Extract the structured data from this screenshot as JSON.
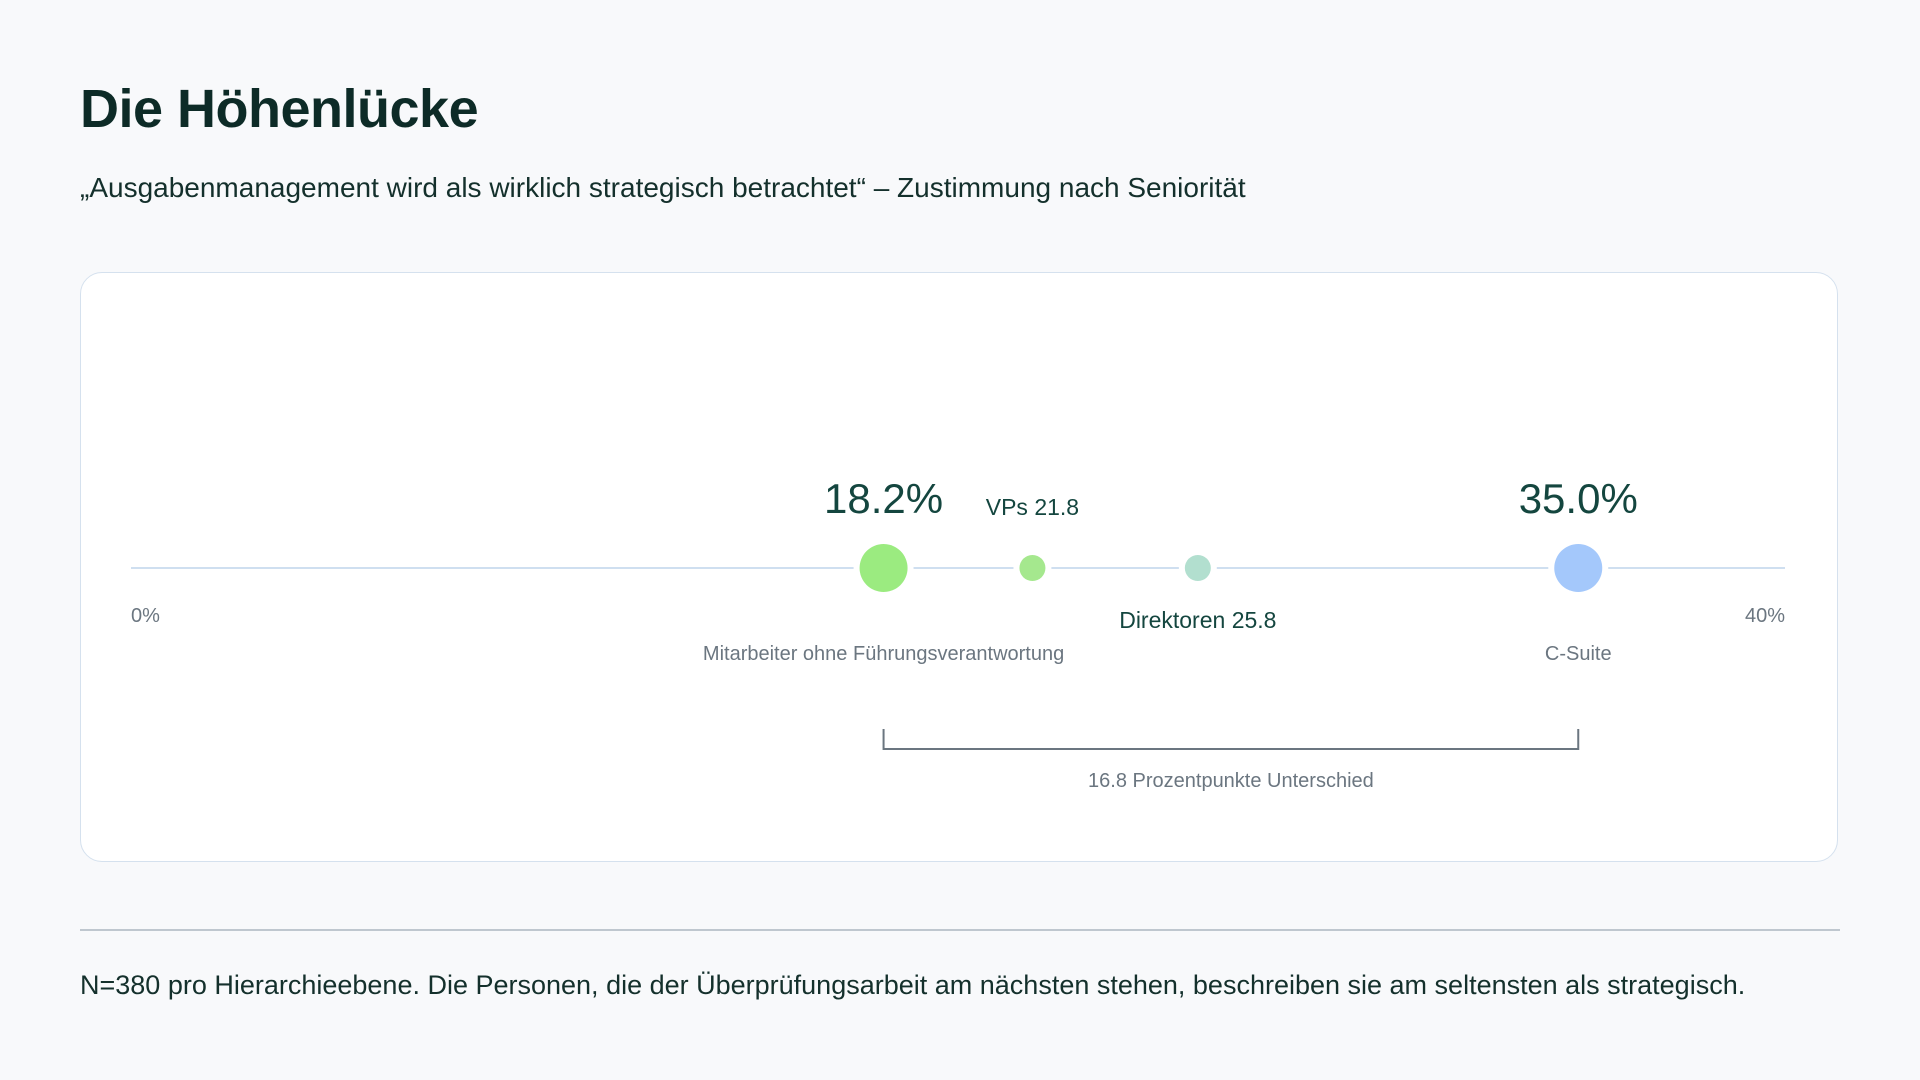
{
  "header": {
    "title": "Die Höhenlücke",
    "subtitle": "„Ausgabenmanagement wird als wirklich strategisch betrachtet“ – Zustimmung nach Seniorität"
  },
  "chart_data": {
    "type": "scatter",
    "axis": {
      "min": 0,
      "max": 40,
      "min_label": "0%",
      "max_label": "40%"
    },
    "points": [
      {
        "name": "Mitarbeiter ohne Führungsverantwortung",
        "value": 18.2,
        "value_label": "18.2%",
        "color": "#9beb80"
      },
      {
        "name": "VPs",
        "value": 21.8,
        "value_label": "VPs 21.8",
        "color": "#a5e88e"
      },
      {
        "name": "Direktoren",
        "value": 25.8,
        "value_label": "Direktoren 25.8",
        "color": "#b2dfcf"
      },
      {
        "name": "C-Suite",
        "value": 35.0,
        "value_label": "35.0%",
        "color": "#a4c8fb"
      }
    ],
    "gap": {
      "from": 18.2,
      "to": 35.0,
      "label": "16.8 Prozentpunkte Unterschied"
    },
    "colors": {
      "axis": "#cfdff0",
      "connector_start": "#a5e88e",
      "connector_end": "#bcd6f3",
      "bracket": "#6b7680",
      "muted_text": "#6b7680",
      "strong_text": "#14463f"
    }
  },
  "footer": {
    "note": "N=380 pro Hierarchieebene. Die Personen, die der Überprüfungsarbeit am nächsten stehen, beschreiben sie am seltensten als strategisch."
  }
}
